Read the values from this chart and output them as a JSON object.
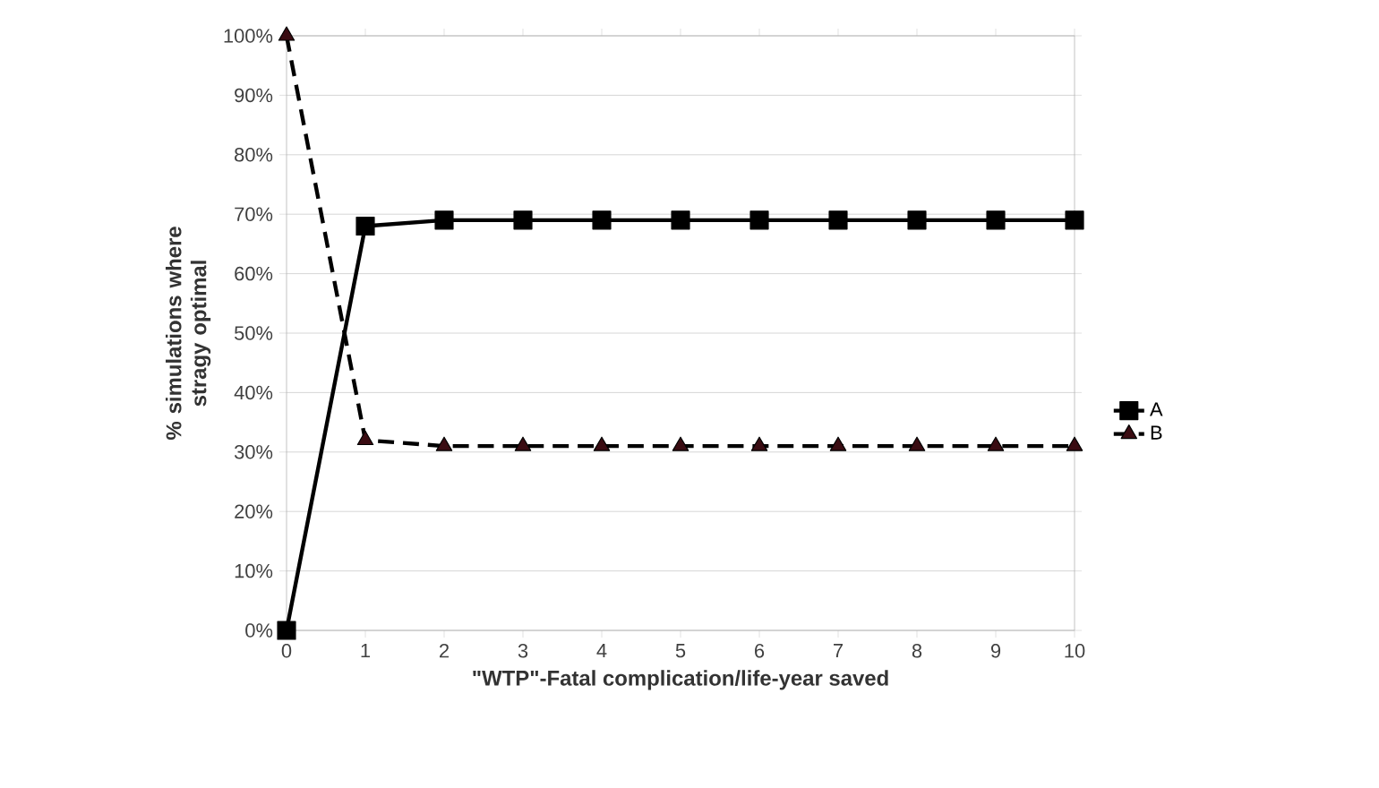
{
  "chart_data": {
    "type": "line",
    "xlabel": "\"WTP\"-Fatal complication/life-year saved",
    "ylabel": "% simulations where stragy optimal",
    "x": [
      0,
      1,
      2,
      3,
      4,
      5,
      6,
      7,
      8,
      9,
      10
    ],
    "series": [
      {
        "name": "A",
        "color": "#000000",
        "marker": "square",
        "line_style": "solid",
        "values": [
          0,
          68,
          69,
          69,
          69,
          69,
          69,
          69,
          69,
          69,
          69
        ]
      },
      {
        "name": "B",
        "color": "#3a0c12",
        "marker": "triangle",
        "line_style": "dashed",
        "values": [
          100,
          32,
          31,
          31,
          31,
          31,
          31,
          31,
          31,
          31,
          31
        ]
      }
    ],
    "xlim": [
      0,
      10
    ],
    "xticks": [
      0,
      1,
      2,
      3,
      4,
      5,
      6,
      7,
      8,
      9,
      10
    ],
    "ylim": [
      0,
      100
    ],
    "yticks": [
      {
        "value": 0,
        "label": "0%"
      },
      {
        "value": 10,
        "label": "10%"
      },
      {
        "value": 20,
        "label": "20%"
      },
      {
        "value": 30,
        "label": "30%"
      },
      {
        "value": 40,
        "label": "40%"
      },
      {
        "value": 50,
        "label": "50%"
      },
      {
        "value": 60,
        "label": "60%"
      },
      {
        "value": 70,
        "label": "70%"
      },
      {
        "value": 80,
        "label": "80%"
      },
      {
        "value": 90,
        "label": "90%"
      },
      {
        "value": 100,
        "label": "100%"
      }
    ],
    "grid": "y",
    "legend": "right"
  }
}
